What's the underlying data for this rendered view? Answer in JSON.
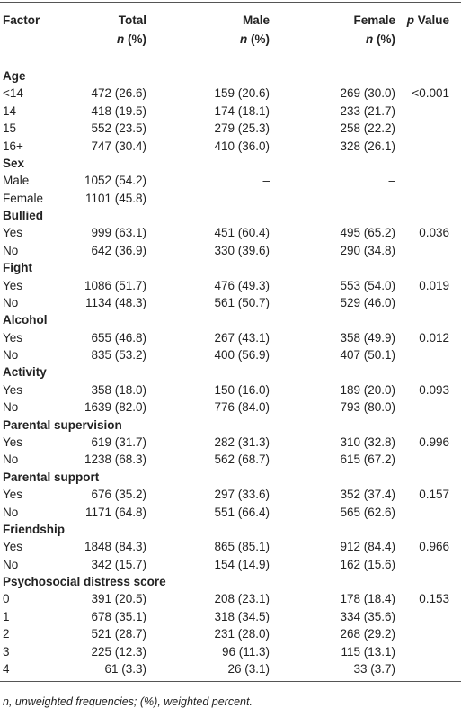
{
  "header": {
    "factor": "Factor",
    "total": {
      "label": "Total",
      "symbol": "n",
      "unit": "(%)"
    },
    "male": {
      "label": "Male",
      "symbol": "n",
      "unit": "(%)"
    },
    "female": {
      "label": "Female",
      "symbol": "n",
      "unit": "(%)"
    },
    "p_value": {
      "symbol": "p",
      "label": "Value"
    }
  },
  "sections": [
    {
      "title": "Age",
      "rows": [
        [
          "<14",
          "472 (26.6)",
          "159 (20.6)",
          "269 (30.0)",
          "<0.001"
        ],
        [
          "14",
          "418 (19.5)",
          "174 (18.1)",
          "233 (21.7)",
          null
        ],
        [
          "15",
          "552 (23.5)",
          "279 (25.3)",
          "258 (22.2)",
          null
        ],
        [
          "16+",
          "747 (30.4)",
          "410 (36.0)",
          "328 (26.1)",
          null
        ]
      ]
    },
    {
      "title": "Sex",
      "rows": [
        [
          "Male",
          "1052 (54.2)",
          "–",
          "–",
          null
        ],
        [
          "Female",
          "1101 (45.8)",
          null,
          null,
          null
        ]
      ]
    },
    {
      "title": "Bullied",
      "rows": [
        [
          "Yes",
          "999 (63.1)",
          "451 (60.4)",
          "495 (65.2)",
          "0.036"
        ],
        [
          "No",
          "642 (36.9)",
          "330 (39.6)",
          "290 (34.8)",
          null
        ]
      ]
    },
    {
      "title": "Fight",
      "rows": [
        [
          "Yes",
          "1086 (51.7)",
          "476 (49.3)",
          "553 (54.0)",
          "0.019"
        ],
        [
          "No",
          "1134 (48.3)",
          "561 (50.7)",
          "529 (46.0)",
          null
        ]
      ]
    },
    {
      "title": "Alcohol",
      "rows": [
        [
          "Yes",
          "655 (46.8)",
          "267 (43.1)",
          "358 (49.9)",
          "0.012"
        ],
        [
          "No",
          "835 (53.2)",
          "400 (56.9)",
          "407 (50.1)",
          null
        ]
      ]
    },
    {
      "title": "Activity",
      "rows": [
        [
          "Yes",
          "358 (18.0)",
          "150 (16.0)",
          "189 (20.0)",
          "0.093"
        ],
        [
          "No",
          "1639 (82.0)",
          "776 (84.0)",
          "793 (80.0)",
          null
        ]
      ]
    },
    {
      "title": "Parental supervision",
      "rows": [
        [
          "Yes",
          "619 (31.7)",
          "282 (31.3)",
          "310 (32.8)",
          "0.996"
        ],
        [
          "No",
          "1238 (68.3)",
          "562 (68.7)",
          "615 (67.2)",
          null
        ]
      ]
    },
    {
      "title": "Parental support",
      "rows": [
        [
          "Yes",
          "676 (35.2)",
          "297 (33.6)",
          "352 (37.4)",
          "0.157"
        ],
        [
          "No",
          "1171 (64.8)",
          "551 (66.4)",
          "565 (62.6)",
          null
        ]
      ]
    },
    {
      "title": "Friendship",
      "rows": [
        [
          "Yes",
          "1848 (84.3)",
          "865 (85.1)",
          "912 (84.4)",
          "0.966"
        ],
        [
          "No",
          "342 (15.7)",
          "154 (14.9)",
          "162 (15.6)",
          null
        ]
      ]
    },
    {
      "title": "Psychosocial distress score",
      "rows": [
        [
          "0",
          "391 (20.5)",
          "208 (23.1)",
          "178 (18.4)",
          "0.153"
        ],
        [
          "1",
          "678 (35.1)",
          "318 (34.5)",
          "334 (35.6)",
          null
        ],
        [
          "2",
          "521 (28.7)",
          "231 (28.0)",
          "268 (29.2)",
          null
        ],
        [
          "3",
          "225 (12.3)",
          "96 (11.3)",
          "115 (13.1)",
          null
        ],
        [
          "4",
          "61 (3.3)",
          "26 (3.1)",
          "33 (3.7)",
          null
        ]
      ]
    }
  ],
  "footnote": "n, unweighted frequencies; (%), weighted percent."
}
